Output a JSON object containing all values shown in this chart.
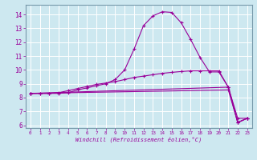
{
  "xlabel": "Windchill (Refroidissement éolien,°C)",
  "bg_color": "#cde8f0",
  "line_color": "#990099",
  "grid_color": "#ffffff",
  "spine_color": "#7799aa",
  "xlim": [
    -0.5,
    23.5
  ],
  "ylim": [
    5.8,
    14.7
  ],
  "xticks": [
    0,
    1,
    2,
    3,
    4,
    5,
    6,
    7,
    8,
    9,
    10,
    11,
    12,
    13,
    14,
    15,
    16,
    17,
    18,
    19,
    20,
    21,
    22,
    23
  ],
  "yticks": [
    6,
    7,
    8,
    9,
    10,
    11,
    12,
    13,
    14
  ],
  "curves": [
    {
      "x": [
        0,
        1,
        2,
        3,
        4,
        5,
        6,
        7,
        8,
        9,
        10,
        11,
        12,
        13,
        14,
        15,
        16,
        17,
        18,
        19,
        20,
        21,
        22,
        23
      ],
      "y": [
        8.3,
        8.3,
        8.3,
        8.3,
        8.35,
        8.55,
        8.7,
        8.85,
        9.0,
        9.3,
        10.0,
        11.5,
        13.2,
        13.9,
        14.2,
        14.15,
        13.4,
        12.2,
        10.9,
        9.85,
        9.85,
        8.75,
        6.2,
        6.5
      ]
    },
    {
      "x": [
        0,
        1,
        2,
        3,
        4,
        5,
        6,
        7,
        8,
        9,
        10,
        11,
        12,
        13,
        14,
        15,
        16,
        17,
        18,
        19,
        20,
        21,
        22,
        23
      ],
      "y": [
        8.3,
        8.3,
        8.3,
        8.35,
        8.5,
        8.65,
        8.8,
        8.95,
        9.05,
        9.15,
        9.3,
        9.45,
        9.55,
        9.65,
        9.75,
        9.82,
        9.88,
        9.93,
        9.93,
        9.93,
        9.93,
        8.75,
        6.5,
        6.5
      ]
    },
    {
      "x": [
        0,
        21,
        22,
        23
      ],
      "y": [
        8.3,
        8.75,
        6.2,
        6.5
      ]
    },
    {
      "x": [
        0,
        21,
        22,
        23
      ],
      "y": [
        8.3,
        8.55,
        6.2,
        6.5
      ]
    }
  ]
}
